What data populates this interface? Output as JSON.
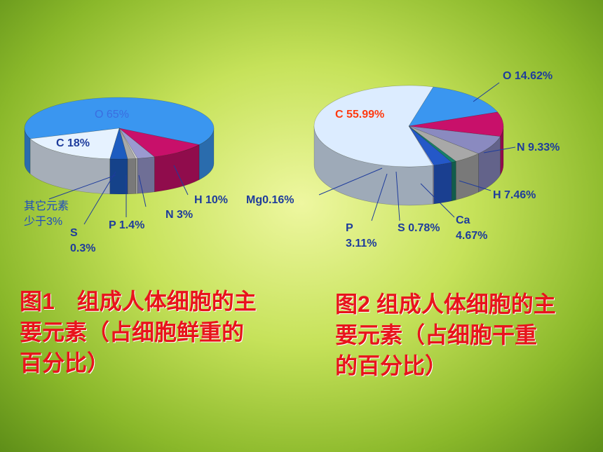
{
  "chart_data": [
    {
      "type": "pie3d",
      "title": "图1　组成人体细胞的主要元素（占细胞鲜重的百分比）",
      "values": [
        65,
        10,
        3,
        0.3,
        1.4,
        3,
        18
      ],
      "value_labels": [
        "O 65%",
        "H 10%",
        "N 3%",
        "S 0.3%",
        "P 1.4%",
        "其它元素少于3%",
        "C 18%"
      ],
      "colors": [
        "#3a96f0",
        "#c8106a",
        "#9a9ad0",
        "#d8d8d8",
        "#a8a8a8",
        "#1d5cc0",
        "#e6f2ff"
      ]
    },
    {
      "type": "pie3d",
      "title": "图2 组成人体细胞的主要元素（占细胞干重的百分比）",
      "values": [
        14.62,
        9.33,
        7.46,
        4.67,
        0.78,
        3.11,
        0.16,
        55.99
      ],
      "value_labels": [
        "O 14.62%",
        "N 9.33%",
        "H 7.46%",
        "Ca 4.67%",
        "S 0.78%",
        "P 3.11%",
        "Mg0.16%",
        "C 55.99%"
      ],
      "colors": [
        "#3a96f0",
        "#c8106a",
        "#8a8ac0",
        "#a8a8a8",
        "#17806a",
        "#2458c8",
        "#c8c8f8",
        "#dcecff"
      ]
    }
  ]
}
